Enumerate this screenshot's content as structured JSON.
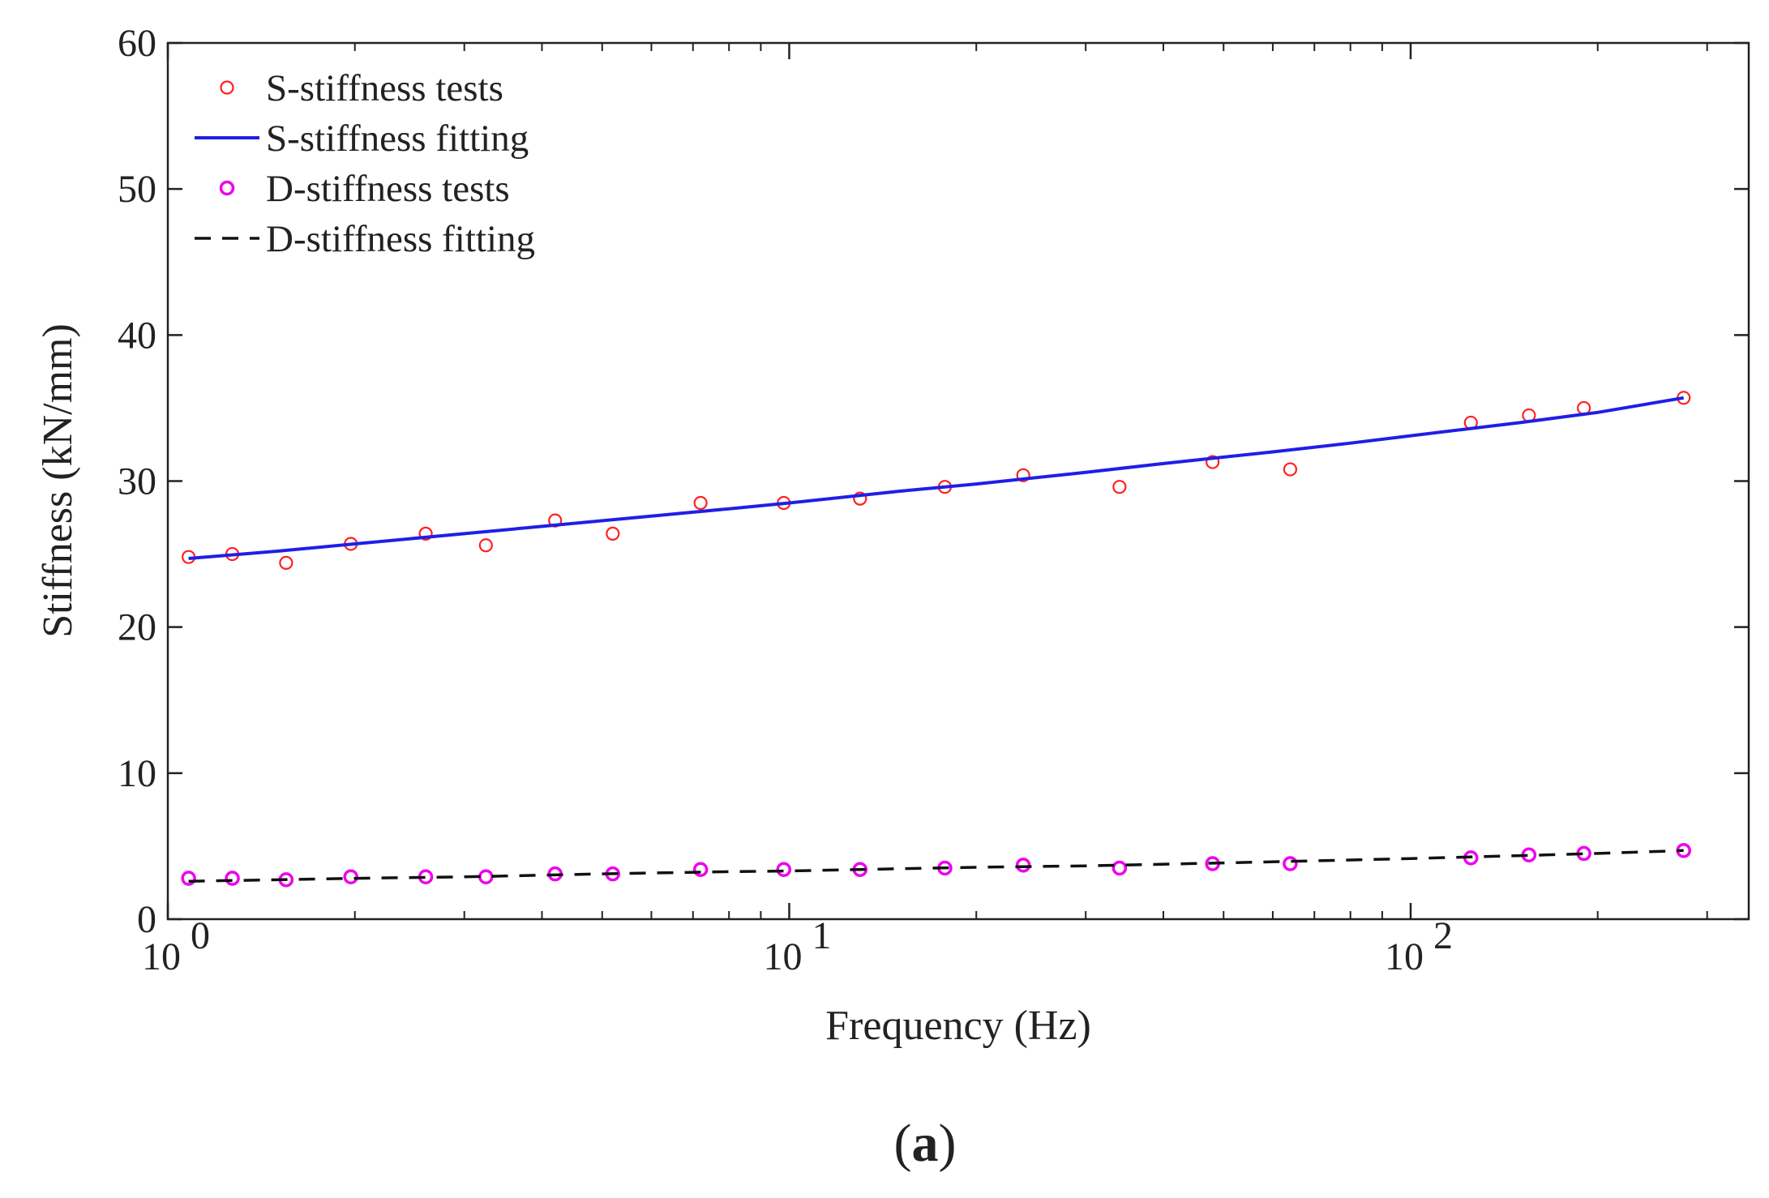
{
  "chart_data": {
    "type": "scatter",
    "title": "",
    "xlabel": "Frequency (Hz)",
    "ylabel": "Stiffness (kN/mm)",
    "xscale": "log",
    "xlim": [
      1,
      350
    ],
    "ylim": [
      0,
      60
    ],
    "grid": false,
    "legend_position": "top-left",
    "panel_label": "(a)",
    "panel_label_letter": "a",
    "yticks": [
      0,
      10,
      20,
      30,
      40,
      50,
      60
    ],
    "xticks": [
      {
        "value": 1,
        "base": "10",
        "exp": "0"
      },
      {
        "value": 10,
        "base": "10",
        "exp": "1"
      },
      {
        "value": 100,
        "base": "10",
        "exp": "2"
      }
    ],
    "series": [
      {
        "name": "S-stiffness tests",
        "kind": "markers",
        "color": "#ff2020",
        "x": [
          1.08,
          1.27,
          1.55,
          1.97,
          2.6,
          3.25,
          4.2,
          5.2,
          7.2,
          9.8,
          13.0,
          17.8,
          23.8,
          34.0,
          48.0,
          64.0,
          125.0,
          155.0,
          190.0,
          275.0
        ],
        "y": [
          24.8,
          25.0,
          24.4,
          25.7,
          26.4,
          25.6,
          27.3,
          26.4,
          28.5,
          28.5,
          28.8,
          29.6,
          30.4,
          29.6,
          31.3,
          30.8,
          34.0,
          34.5,
          35.0,
          35.7
        ]
      },
      {
        "name": "S-stiffness fitting",
        "kind": "line",
        "color": "#1f1fe6",
        "x": [
          1.08,
          1.5,
          2,
          3,
          4,
          6,
          8,
          10,
          15,
          20,
          30,
          40,
          60,
          80,
          100,
          150,
          200,
          275
        ],
        "y": [
          24.7,
          25.2,
          25.7,
          26.4,
          26.9,
          27.6,
          28.1,
          28.5,
          29.3,
          29.8,
          30.6,
          31.2,
          32.0,
          32.6,
          33.1,
          34.0,
          34.7,
          35.7
        ]
      },
      {
        "name": "D-stiffness tests",
        "kind": "markers",
        "color": "#ee00ee",
        "x": [
          1.08,
          1.27,
          1.55,
          1.97,
          2.6,
          3.25,
          4.2,
          5.2,
          7.2,
          9.8,
          13.0,
          17.8,
          23.8,
          34.0,
          48.0,
          64.0,
          125.0,
          155.0,
          190.0,
          275.0
        ],
        "y": [
          2.8,
          2.8,
          2.7,
          2.9,
          2.9,
          2.9,
          3.1,
          3.1,
          3.4,
          3.4,
          3.4,
          3.5,
          3.7,
          3.5,
          3.8,
          3.8,
          4.2,
          4.4,
          4.5,
          4.7
        ]
      },
      {
        "name": "D-stiffness fitting",
        "kind": "dashed",
        "color": "#111111",
        "x": [
          1.08,
          1.5,
          2,
          3,
          5,
          8,
          10,
          15,
          20,
          30,
          50,
          80,
          100,
          150,
          200,
          275
        ],
        "y": [
          2.6,
          2.7,
          2.8,
          2.9,
          3.1,
          3.25,
          3.3,
          3.45,
          3.55,
          3.65,
          3.85,
          4.05,
          4.15,
          4.35,
          4.5,
          4.7
        ]
      }
    ]
  }
}
